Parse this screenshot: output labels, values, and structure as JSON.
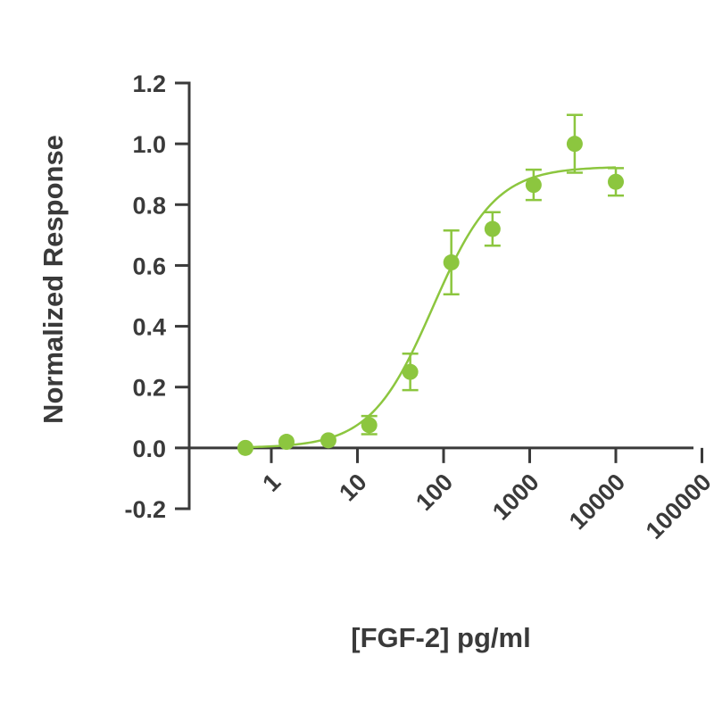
{
  "chart_data": {
    "type": "scatter",
    "title": "",
    "xlabel": "[FGF-2] pg/ml",
    "ylabel": "Normalized Response",
    "x_scale": "log",
    "xlim": [
      0.3,
      100000
    ],
    "ylim": [
      -0.2,
      1.2
    ],
    "x_ticks": [
      1,
      10,
      100,
      1000,
      10000,
      100000
    ],
    "x_tick_labels": [
      "1",
      "10",
      "100",
      "1000",
      "10000",
      "100000"
    ],
    "y_ticks": [
      -0.2,
      0.0,
      0.2,
      0.4,
      0.6,
      0.8,
      1.0,
      1.2
    ],
    "y_tick_labels": [
      "-0.2",
      "0.0",
      "0.2",
      "0.4",
      "0.6",
      "0.8",
      "1.0",
      "1.2"
    ],
    "grid": false,
    "legend": "none",
    "series": [
      {
        "color": "#8cc63f",
        "points": [
          {
            "x": 0.5,
            "y": 0.0,
            "err": 0.0
          },
          {
            "x": 1.5,
            "y": 0.02,
            "err": 0.0
          },
          {
            "x": 4.6,
            "y": 0.025,
            "err": 0.0
          },
          {
            "x": 13.7,
            "y": 0.075,
            "err": 0.03
          },
          {
            "x": 41,
            "y": 0.25,
            "err": 0.06
          },
          {
            "x": 123,
            "y": 0.61,
            "err": 0.105
          },
          {
            "x": 370,
            "y": 0.72,
            "err": 0.055
          },
          {
            "x": 1110,
            "y": 0.865,
            "err": 0.05
          },
          {
            "x": 3330,
            "y": 1.0,
            "err": 0.095
          },
          {
            "x": 10000,
            "y": 0.875,
            "err": 0.045
          }
        ],
        "fit": {
          "model": "4PL",
          "bottom": 0.0,
          "top": 0.925,
          "ec50": 75,
          "hill": 1.2,
          "x_range": [
            0.5,
            10000
          ]
        }
      }
    ]
  }
}
